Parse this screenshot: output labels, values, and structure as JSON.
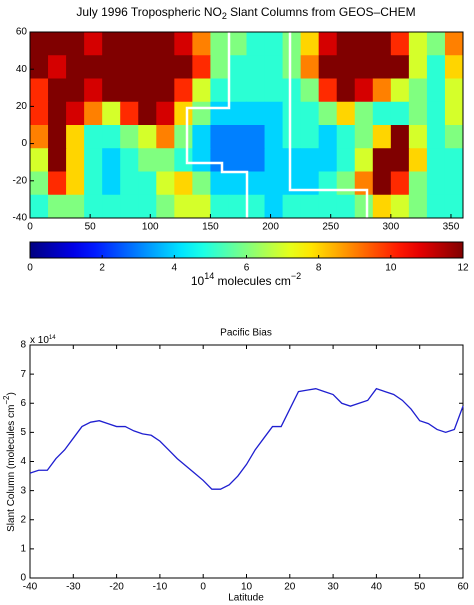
{
  "chart_data": [
    {
      "type": "heatmap",
      "title": [
        "July 1996 Tropospheric NO",
        "2",
        " Slant Columns from GEOS–CHEM"
      ],
      "xlim": [
        0,
        360
      ],
      "xticks": [
        0,
        50,
        100,
        150,
        200,
        250,
        300,
        350
      ],
      "ylim": [
        -40,
        60
      ],
      "yticks": [
        -40,
        -20,
        0,
        20,
        40,
        60
      ],
      "colormap": "jet",
      "clim": [
        0,
        12
      ],
      "cticks": [
        0,
        2,
        4,
        6,
        8,
        10,
        12
      ],
      "colorbar_label": [
        "10",
        "14",
        " molecules cm",
        "−2"
      ],
      "z": [
        [
          12,
          12,
          12,
          11,
          12,
          12,
          12,
          12,
          11,
          9,
          6,
          6,
          5,
          5,
          6,
          8,
          11,
          12,
          12,
          12,
          10,
          7,
          6,
          9
        ],
        [
          12,
          11,
          12,
          12,
          12,
          12,
          12,
          12,
          12,
          10,
          6,
          5,
          5,
          5,
          6,
          9,
          12,
          12,
          12,
          12,
          12,
          7,
          5,
          8
        ],
        [
          10,
          12,
          12,
          11,
          12,
          12,
          12,
          12,
          10,
          7,
          5,
          5,
          5,
          5,
          5,
          6,
          10,
          12,
          11,
          9,
          7,
          6,
          5,
          7
        ],
        [
          10,
          12,
          11,
          9,
          7,
          10,
          12,
          11,
          8,
          6,
          4,
          4,
          4,
          4,
          5,
          5,
          6,
          8,
          6,
          5,
          5,
          6,
          5,
          7
        ],
        [
          9,
          12,
          8,
          5,
          5,
          6,
          7,
          9,
          6,
          4,
          3,
          3,
          3,
          4,
          5,
          5,
          4,
          5,
          6,
          8,
          12,
          7,
          5,
          6
        ],
        [
          7,
          12,
          8,
          5,
          4,
          5,
          6,
          6,
          5,
          4,
          3,
          3,
          3,
          4,
          4,
          4,
          4,
          5,
          7,
          12,
          12,
          8,
          5,
          5
        ],
        [
          6,
          10,
          8,
          5,
          4,
          5,
          5,
          7,
          8,
          6,
          4,
          4,
          4,
          4,
          4,
          4,
          5,
          6,
          9,
          12,
          10,
          6,
          5,
          5
        ],
        [
          5,
          6,
          6,
          5,
          5,
          5,
          5,
          6,
          7,
          7,
          5,
          5,
          5,
          4,
          5,
          5,
          5,
          5,
          6,
          8,
          7,
          6,
          5,
          5
        ]
      ]
    },
    {
      "type": "line",
      "title": "Pacific Bias",
      "xlabel": "Latitude",
      "ylabel": [
        "Slant Column (molecules cm",
        "−2",
        ")"
      ],
      "multiplier": [
        "x 10",
        "14"
      ],
      "xlim": [
        -40,
        60
      ],
      "xticks": [
        -40,
        -30,
        -20,
        -10,
        0,
        10,
        20,
        30,
        40,
        50,
        60
      ],
      "ylim": [
        0,
        8
      ],
      "yticks": [
        0,
        1,
        2,
        3,
        4,
        5,
        6,
        7,
        8
      ],
      "x": [
        -40,
        -38,
        -36,
        -34,
        -32,
        -30,
        -28,
        -26,
        -24,
        -22,
        -20,
        -18,
        -16,
        -14,
        -12,
        -10,
        -8,
        -6,
        -4,
        -2,
        0,
        2,
        4,
        6,
        8,
        10,
        12,
        14,
        16,
        18,
        20,
        22,
        24,
        26,
        28,
        30,
        32,
        34,
        36,
        38,
        40,
        42,
        44,
        46,
        48,
        50,
        52,
        54,
        56,
        58,
        60
      ],
      "series": [
        {
          "color": "#1f1fd0",
          "values": [
            3.6,
            3.7,
            3.7,
            4.1,
            4.4,
            4.8,
            5.2,
            5.35,
            5.4,
            5.3,
            5.2,
            5.2,
            5.05,
            4.95,
            4.9,
            4.7,
            4.4,
            4.1,
            3.85,
            3.6,
            3.35,
            3.05,
            3.05,
            3.2,
            3.5,
            3.9,
            4.4,
            4.8,
            5.2,
            5.2,
            5.8,
            6.4,
            6.45,
            6.5,
            6.4,
            6.3,
            6.0,
            5.9,
            6.0,
            6.1,
            6.5,
            6.4,
            6.3,
            6.1,
            5.8,
            5.4,
            5.3,
            5.1,
            5.0,
            5.1,
            5.9
          ]
        }
      ]
    }
  ]
}
